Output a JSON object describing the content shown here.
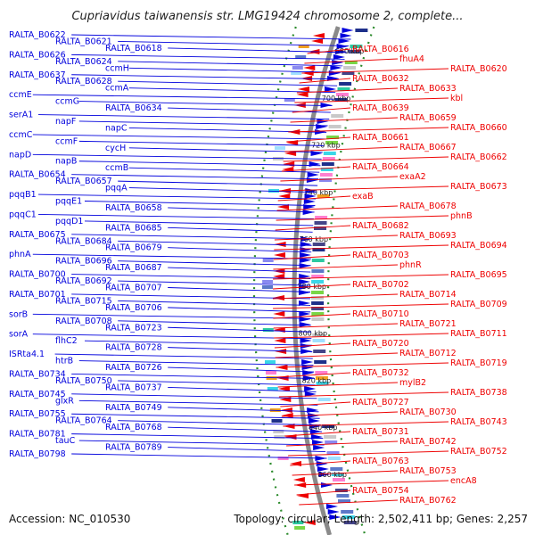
{
  "title": "Cupriavidus taiwanensis str. LMG19424 chromosome 2, complete...",
  "footer": {
    "accession": "Accession: NC_010530",
    "topology": "Topology: circular; Length: 2,502,411 bp; Genes: 2,257"
  },
  "colors": {
    "forward": "#0000dd",
    "reverse": "#ee0000",
    "backbone": "#8a8a8a",
    "track_dots": "#2a8a2a"
  },
  "kbp_ticks": [
    "680 kbp",
    "700 kbp",
    "720 kbp",
    "740 kbp",
    "760 kbp",
    "780 kbp",
    "800 kbp",
    "820 kbp",
    "840 kbp",
    "860 kbp"
  ],
  "left_labels": [
    "RALTA_B0622",
    "RALTA_B0621",
    "RALTA_B0618",
    "RALTA_B0626",
    "RALTA_B0624",
    "ccmH",
    "RALTA_B0637",
    "RALTA_B0628",
    "ccmA",
    "ccmE",
    "ccmG",
    "RALTA_B0634",
    "serA1",
    "napF",
    "napC",
    "ccmC",
    "ccmF",
    "cycH",
    "napD",
    "napB",
    "ccmB",
    "RALTA_B0654",
    "RALTA_B0657",
    "pqqA",
    "pqqB1",
    "pqqE1",
    "RALTA_B0658",
    "pqqC1",
    "pqqD1",
    "RALTA_B0685",
    "RALTA_B0675",
    "RALTA_B0684",
    "RALTA_B0679",
    "phnA",
    "RALTA_B0696",
    "RALTA_B0687",
    "RALTA_B0700",
    "RALTA_B0692",
    "RALTA_B0707",
    "RALTA_B0701",
    "RALTA_B0715",
    "RALTA_B0706",
    "sorB",
    "RALTA_B0708",
    "RALTA_B0723",
    "sorA",
    "flhC2",
    "RALTA_B0728",
    "ISRta4.1",
    "htrB",
    "RALTA_B0726",
    "RALTA_B0734",
    "RALTA_B0750",
    "RALTA_B0737",
    "RALTA_B0745",
    "glxR",
    "RALTA_B0749",
    "RALTA_B0755",
    "RALTA_B0764",
    "RALTA_B0768",
    "RALTA_B0781",
    "tauC",
    "RALTA_B0789",
    "RALTA_B0798"
  ],
  "right_labels": [
    "RALTA_B0616",
    "fhuA4",
    "RALTA_B0620",
    "RALTA_B0632",
    "RALTA_B0633",
    "kbl",
    "RALTA_B0639",
    "RALTA_B0659",
    "RALTA_B0660",
    "RALTA_B0661",
    "RALTA_B0667",
    "RALTA_B0662",
    "RALTA_B0664",
    "exaA2",
    "RALTA_B0673",
    "exaB",
    "RALTA_B0678",
    "phnB",
    "RALTA_B0682",
    "RALTA_B0693",
    "RALTA_B0694",
    "RALTA_B0703",
    "phnR",
    "RALTA_B0695",
    "RALTA_B0702",
    "RALTA_B0714",
    "RALTA_B0709",
    "RALTA_B0710",
    "RALTA_B0721",
    "RALTA_B0711",
    "RALTA_B0720",
    "RALTA_B0712",
    "RALTA_B0719",
    "RALTA_B0732",
    "mylB2",
    "RALTA_B0738",
    "RALTA_B0727",
    "RALTA_B0730",
    "RALTA_B0743",
    "RALTA_B0731",
    "RALTA_B0742",
    "RALTA_B0752",
    "RALTA_B0763",
    "RALTA_B0753",
    "encA8",
    "RALTA_B0754",
    "RALTA_B0762"
  ]
}
